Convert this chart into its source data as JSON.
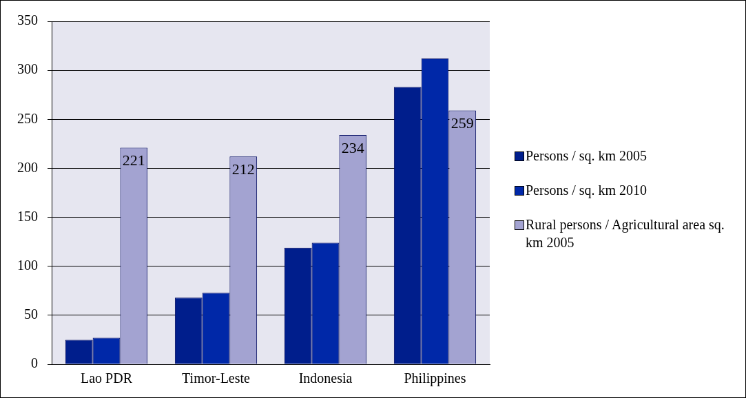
{
  "chart_data": {
    "type": "bar",
    "categories": [
      "Lao PDR",
      "Timor-Leste",
      "Indonesia",
      "Philippines"
    ],
    "series": [
      {
        "name": "Persons / sq. km 2005",
        "color": "#001e8c",
        "values": [
          25,
          68,
          119,
          283
        ]
      },
      {
        "name": "Persons / sq. km 2010",
        "color": "#0028a8",
        "values": [
          27,
          73,
          124,
          312
        ]
      },
      {
        "name": "Rural persons / Agricultural area sq. km 2005",
        "color": "#a3a3d1",
        "values": [
          221,
          212,
          234,
          259
        ],
        "value_labels": [
          "221",
          "212",
          "234",
          "259"
        ]
      }
    ],
    "ylim": [
      0,
      350
    ],
    "yticks": [
      0,
      50,
      100,
      150,
      200,
      250,
      300,
      350
    ],
    "grid": "y",
    "legend": "right"
  }
}
